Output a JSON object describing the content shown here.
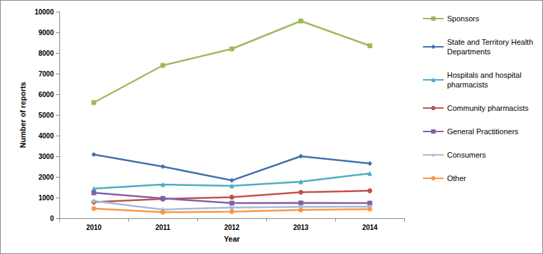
{
  "chart_data": {
    "type": "line",
    "x_label": "Year",
    "y_label": "Number of reports",
    "categories": [
      "2010",
      "2011",
      "2012",
      "2013",
      "2014"
    ],
    "ylim": [
      0,
      10000
    ],
    "yticks": [
      0,
      1000,
      2000,
      3000,
      4000,
      5000,
      6000,
      7000,
      8000,
      9000,
      10000
    ],
    "grid": false,
    "legend": "right",
    "series": [
      {
        "name": "Sponsors",
        "color": "#9bbb59",
        "marker": "square",
        "line_style": "solid",
        "values": [
          5600,
          7400,
          8200,
          9550,
          8350
        ]
      },
      {
        "name": "State and Territory Health Departments",
        "color": "#3f6fae",
        "marker": "diamond",
        "line_style": "solid",
        "values": [
          3080,
          2500,
          1830,
          3000,
          2650
        ]
      },
      {
        "name": "Hospitals and hospital pharmacists",
        "color": "#4bacc6",
        "marker": "triangle",
        "line_style": "solid",
        "values": [
          1430,
          1630,
          1570,
          1770,
          2170
        ]
      },
      {
        "name": "Community pharmacists",
        "color": "#c0504d",
        "marker": "circle",
        "line_style": "solid",
        "values": [
          780,
          930,
          1020,
          1260,
          1330
        ]
      },
      {
        "name": "General Practitioners",
        "color": "#7f5fa6",
        "marker": "square",
        "line_style": "solid",
        "values": [
          1230,
          960,
          730,
          740,
          730
        ]
      },
      {
        "name": "Consumers",
        "color": "#a5b9da",
        "marker": "star",
        "line_style": "solid",
        "values": [
          830,
          420,
          520,
          550,
          560
        ]
      },
      {
        "name": "Other",
        "color": "#f79646",
        "marker": "circle",
        "line_style": "solid",
        "values": [
          470,
          290,
          320,
          400,
          440
        ]
      }
    ]
  }
}
